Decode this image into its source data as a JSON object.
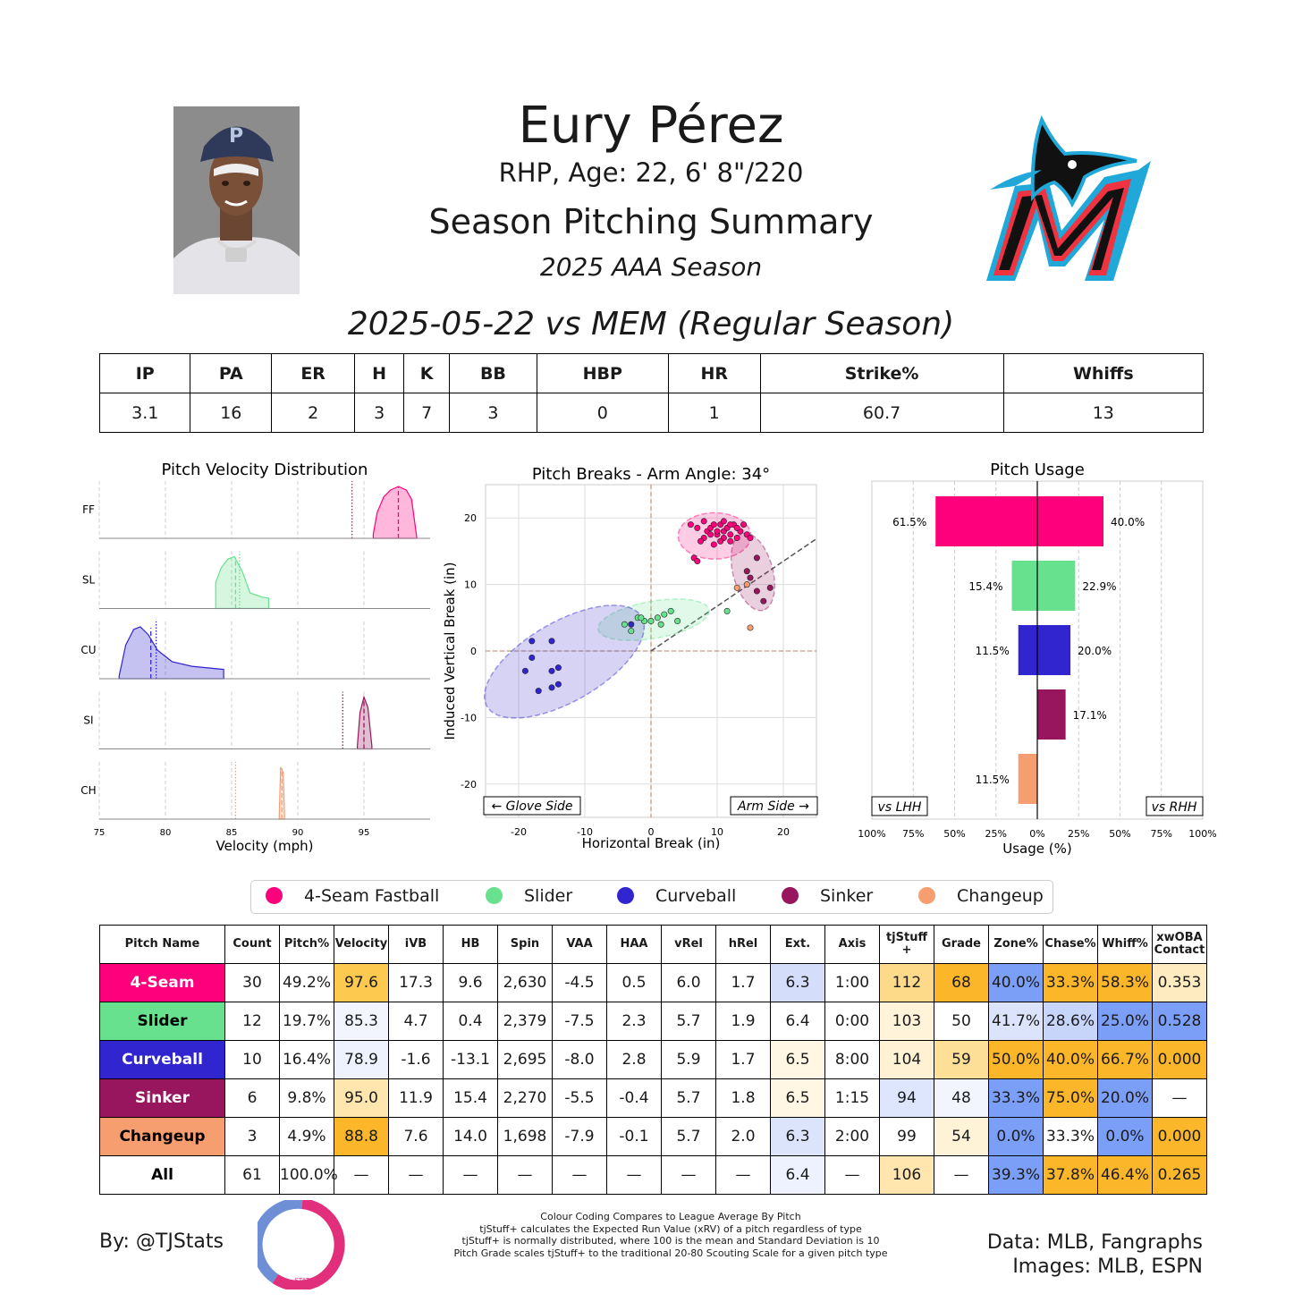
{
  "header": {
    "name": "Eury Pérez",
    "info": "RHP, Age: 22, 6' 8\"/220",
    "title": "Season Pitching Summary",
    "season": "2025 AAA Season",
    "game": "2025-05-22 vs MEM (Regular Season)"
  },
  "game_stats": {
    "headers": [
      "IP",
      "PA",
      "ER",
      "H",
      "K",
      "BB",
      "HBP",
      "HR",
      "Strike%",
      "Whiffs"
    ],
    "values": [
      "3.1",
      "16",
      "2",
      "3",
      "7",
      "3",
      "0",
      "1",
      "60.7",
      "13"
    ]
  },
  "colors": {
    "4-Seam Fastball": "#ff007d",
    "Slider": "#67e18d",
    "Curveball": "#3025ce",
    "Sinker": "#98165d",
    "Changeup": "#f79e70"
  },
  "legend": [
    "4-Seam Fastball",
    "Slider",
    "Curveball",
    "Sinker",
    "Changeup"
  ],
  "chart_data": [
    {
      "type": "area",
      "title": "Pitch Velocity Distribution",
      "xlabel": "Velocity (mph)",
      "xlim": [
        75,
        100
      ],
      "xticks": [
        75,
        80,
        85,
        90,
        95
      ],
      "rows": [
        {
          "label": "FF",
          "pitch": "4-Seam Fastball",
          "range": [
            95.7,
            99.0
          ],
          "mode": 97.6,
          "mean": 97.6,
          "league_avg": 94.1,
          "curve": [
            [
              95.7,
              0.08
            ],
            [
              96.0,
              0.5
            ],
            [
              96.5,
              0.8
            ],
            [
              97.0,
              0.93
            ],
            [
              97.6,
              1.0
            ],
            [
              98.2,
              0.93
            ],
            [
              98.6,
              0.75
            ],
            [
              99.0,
              0.0
            ]
          ]
        },
        {
          "label": "SL",
          "pitch": "Slider",
          "range": [
            83.8,
            87.8
          ],
          "mode": 85.2,
          "mean": 85.3,
          "league_avg": 85.6,
          "curve": [
            [
              83.8,
              0.5
            ],
            [
              84.2,
              0.78
            ],
            [
              84.7,
              0.95
            ],
            [
              85.2,
              1.0
            ],
            [
              85.8,
              0.72
            ],
            [
              86.4,
              0.3
            ],
            [
              87.3,
              0.22
            ],
            [
              87.8,
              0.2
            ]
          ]
        },
        {
          "label": "CU",
          "pitch": "Curveball",
          "range": [
            76.5,
            84.4
          ],
          "mode": 78.0,
          "mean": 78.9,
          "league_avg": 79.3,
          "curve": [
            [
              76.5,
              0.05
            ],
            [
              77.0,
              0.65
            ],
            [
              77.6,
              0.95
            ],
            [
              78.1,
              1.0
            ],
            [
              78.7,
              0.85
            ],
            [
              79.4,
              0.55
            ],
            [
              80.5,
              0.33
            ],
            [
              82.0,
              0.24
            ],
            [
              84.4,
              0.18
            ]
          ]
        },
        {
          "label": "SI",
          "pitch": "Sinker",
          "range": [
            94.5,
            95.6
          ],
          "mode": 95.0,
          "mean": 95.0,
          "league_avg": 93.4,
          "curve": [
            [
              94.5,
              0.05
            ],
            [
              94.7,
              0.7
            ],
            [
              95.0,
              1.0
            ],
            [
              95.3,
              0.8
            ],
            [
              95.6,
              0.05
            ]
          ]
        },
        {
          "label": "CH",
          "pitch": "Changeup",
          "range": [
            88.6,
            89.0
          ],
          "mode": 88.8,
          "mean": 88.8,
          "league_avg": 85.3,
          "curve": [
            [
              88.6,
              0.1
            ],
            [
              88.7,
              1.0
            ],
            [
              88.8,
              0.95
            ],
            [
              88.9,
              0.9
            ],
            [
              89.0,
              0.05
            ]
          ]
        }
      ]
    },
    {
      "type": "scatter",
      "title": "Pitch Breaks - Arm Angle: 34°",
      "xlabel": "Horizontal Break (in)",
      "ylabel": "Induced Vertical Break (in)",
      "xlim": [
        -25,
        25
      ],
      "ylim": [
        -25,
        25
      ],
      "ticks": [
        -20,
        -10,
        0,
        10,
        20
      ],
      "glove_label": "← Glove Side",
      "arm_label": "Arm Side →",
      "arm_angle_deg": 34,
      "series": [
        {
          "name": "4-Seam Fastball",
          "ellipse": {
            "cx": 9.6,
            "cy": 17.3,
            "rx": 5.5,
            "ry": 3.5,
            "angle": 0
          },
          "points": [
            [
              6,
              19
            ],
            [
              7,
              18.5
            ],
            [
              8,
              17
            ],
            [
              8.5,
              18
            ],
            [
              9,
              18.5
            ],
            [
              9,
              17.5
            ],
            [
              9.5,
              19
            ],
            [
              10,
              17.5
            ],
            [
              10,
              18
            ],
            [
              10.5,
              19
            ],
            [
              11,
              17
            ],
            [
              11,
              18
            ],
            [
              11.5,
              18.5
            ],
            [
              12,
              16.5
            ],
            [
              12,
              17.5
            ],
            [
              12.5,
              19
            ],
            [
              13,
              17
            ],
            [
              13.5,
              18
            ],
            [
              14,
              19
            ],
            [
              14.5,
              17.5
            ],
            [
              7.5,
              16.5
            ],
            [
              9.5,
              16
            ],
            [
              10.5,
              16.5
            ],
            [
              13,
              18.5
            ],
            [
              8,
              19.5
            ],
            [
              11,
              19.5
            ],
            [
              12,
              19
            ],
            [
              6.5,
              14
            ],
            [
              7,
              13.5
            ],
            [
              15,
              17
            ]
          ]
        },
        {
          "name": "Slider",
          "ellipse": {
            "cx": 0.4,
            "cy": 4.7,
            "rx": 8.5,
            "ry": 2.8,
            "angle": -10
          },
          "points": [
            [
              -4,
              4
            ],
            [
              -3,
              3
            ],
            [
              -2,
              5
            ],
            [
              -1,
              4.5
            ],
            [
              0,
              4.5
            ],
            [
              1,
              5
            ],
            [
              1.5,
              4
            ],
            [
              2,
              5.5
            ],
            [
              3,
              6
            ],
            [
              4,
              4.5
            ],
            [
              -1.5,
              5
            ],
            [
              11.5,
              6
            ]
          ]
        },
        {
          "name": "Curveball",
          "ellipse": {
            "cx": -13.1,
            "cy": -1.6,
            "rx": 13.5,
            "ry": 6,
            "angle": -30
          },
          "points": [
            [
              -18,
              -1
            ],
            [
              -19,
              -3
            ],
            [
              -15,
              -3
            ],
            [
              -14,
              -2.5
            ],
            [
              -17,
              -6
            ],
            [
              -15,
              -5.5
            ],
            [
              -14,
              -5
            ],
            [
              -15,
              1.5
            ],
            [
              -18,
              1.5
            ],
            [
              -3,
              4
            ]
          ]
        },
        {
          "name": "Sinker",
          "ellipse": {
            "cx": 15.4,
            "cy": 11.9,
            "rx": 6,
            "ry": 3,
            "angle": 75
          },
          "points": [
            [
              15,
              11
            ],
            [
              16,
              9
            ],
            [
              17,
              7.5
            ],
            [
              18,
              9.5
            ],
            [
              14.5,
              12
            ],
            [
              16,
              14
            ]
          ]
        },
        {
          "name": "Changeup",
          "ellipse": null,
          "points": [
            [
              13,
              9.5
            ],
            [
              14.5,
              10
            ],
            [
              15,
              3.5
            ]
          ]
        }
      ]
    },
    {
      "type": "bar",
      "title": "Pitch Usage",
      "xlabel": "Usage (%)",
      "xticks": [
        "100%",
        "75%",
        "50%",
        "25%",
        "0%",
        "25%",
        "50%",
        "75%",
        "100%"
      ],
      "lhh_label": "vs LHH",
      "rhh_label": "vs RHH",
      "series": [
        {
          "name": "4-Seam Fastball",
          "vs_lhh": 61.5,
          "vs_rhh": 40.0
        },
        {
          "name": "Slider",
          "vs_lhh": 15.4,
          "vs_rhh": 22.9
        },
        {
          "name": "Curveball",
          "vs_lhh": 11.5,
          "vs_rhh": 20.0
        },
        {
          "name": "Sinker",
          "vs_lhh": 0,
          "vs_rhh": 17.1
        },
        {
          "name": "Changeup",
          "vs_lhh": 11.5,
          "vs_rhh": 0
        }
      ]
    },
    {
      "type": "table",
      "headers": [
        "Pitch Name",
        "Count",
        "Pitch%",
        "Velocity",
        "iVB",
        "HB",
        "Spin",
        "VAA",
        "HAA",
        "vRel",
        "hRel",
        "Ext.",
        "Axis",
        "tjStuff +",
        "Grade",
        "Zone%",
        "Chase%",
        "Whiff%",
        "xwOBA Contact"
      ],
      "rows": [
        {
          "name": "4-Seam",
          "name_bg": "#ff007d",
          "name_color": "#ffffff",
          "cells": [
            "30",
            "49.2%",
            "97.6",
            "17.3",
            "9.6",
            "2,630",
            "-4.5",
            "0.5",
            "6.0",
            "1.7",
            "6.3",
            "1:00",
            "112",
            "68",
            "40.0%",
            "33.3%",
            "58.3%",
            "0.353"
          ],
          "bg": [
            "",
            "",
            "#fdc94e",
            "",
            "",
            "",
            "",
            "",
            "",
            "",
            "#d4ddfa",
            "",
            "#fdd98a",
            "#fbb62a",
            "#7b9ef7",
            "#fbb62a",
            "#fbb62a",
            "#feecc0"
          ]
        },
        {
          "name": "Slider",
          "name_bg": "#67e18d",
          "name_color": "#000000",
          "cells": [
            "12",
            "19.7%",
            "85.3",
            "4.7",
            "0.4",
            "2,379",
            "-7.5",
            "2.3",
            "5.7",
            "1.9",
            "6.4",
            "0:00",
            "103",
            "50",
            "41.7%",
            "28.6%",
            "25.0%",
            "0.528"
          ],
          "bg": [
            "",
            "",
            "#f2f5fe",
            "",
            "",
            "",
            "",
            "",
            "",
            "",
            "",
            "",
            "#fff3d9",
            "",
            "#dce4fb",
            "#c8d5fa",
            "#7b9ef7",
            "#7b9ef7"
          ]
        },
        {
          "name": "Curveball",
          "name_bg": "#3025ce",
          "name_color": "#ffffff",
          "cells": [
            "10",
            "16.4%",
            "78.9",
            "-1.6",
            "-13.1",
            "2,695",
            "-8.0",
            "2.8",
            "5.9",
            "1.7",
            "6.5",
            "8:00",
            "104",
            "59",
            "50.0%",
            "40.0%",
            "66.7%",
            "0.000"
          ],
          "bg": [
            "",
            "",
            "#eef2fe",
            "",
            "",
            "",
            "",
            "",
            "",
            "",
            "#fff6e3",
            "",
            "#fff1d3",
            "#fddf98",
            "#fbb62a",
            "#fbb62a",
            "#fbb62a",
            "#fbb62a"
          ]
        },
        {
          "name": "Sinker",
          "name_bg": "#98165d",
          "name_color": "#ffffff",
          "cells": [
            "6",
            "9.8%",
            "95.0",
            "11.9",
            "15.4",
            "2,270",
            "-5.5",
            "-0.4",
            "5.7",
            "1.8",
            "6.5",
            "1:15",
            "94",
            "48",
            "33.3%",
            "75.0%",
            "20.0%",
            "—"
          ],
          "bg": [
            "",
            "",
            "#fee6ae",
            "",
            "",
            "",
            "",
            "",
            "",
            "",
            "#fff6e3",
            "",
            "#dde6fc",
            "#f2f5fe",
            "#7b9ef7",
            "#fbb62a",
            "#7b9ef7",
            ""
          ]
        },
        {
          "name": "Changeup",
          "name_bg": "#f79e70",
          "name_color": "#000000",
          "cells": [
            "3",
            "4.9%",
            "88.8",
            "7.6",
            "14.0",
            "1,698",
            "-7.9",
            "-0.1",
            "5.7",
            "2.0",
            "6.3",
            "2:00",
            "99",
            "54",
            "0.0%",
            "33.3%",
            "0.0%",
            "0.000"
          ],
          "bg": [
            "",
            "",
            "#fbb62a",
            "",
            "",
            "",
            "",
            "",
            "",
            "",
            "#dce4fb",
            "",
            "",
            "#fef2d7",
            "#7b9ef7",
            "",
            "#7b9ef7",
            "#fbb62a"
          ]
        },
        {
          "name": "All",
          "name_bg": "#ffffff",
          "name_color": "#000000",
          "cells": [
            "61",
            "100.0%",
            "—",
            "—",
            "—",
            "—",
            "—",
            "—",
            "—",
            "—",
            "6.4",
            "—",
            "106",
            "—",
            "39.3%",
            "37.8%",
            "46.4%",
            "0.265"
          ],
          "bg": [
            "",
            "",
            "",
            "",
            "",
            "",
            "",
            "",
            "",
            "",
            "#eef2fe",
            "",
            "#fee6ae",
            "",
            "#7b9ef7",
            "#fbb62a",
            "#fbb62a",
            "#fbb62a"
          ]
        }
      ]
    }
  ],
  "footer": {
    "by": "By: @TJStats",
    "notes": [
      "Colour Coding Compares to League Average By Pitch",
      "tjStuff+ calculates the Expected Run Value (xRV) of a pitch regardless of type",
      "tjStuff+ is normally distributed, where 100 is the mean and Standard Deviation is 10",
      "Pitch Grade scales tjStuff+ to the traditional 20-80 Scouting Scale for a given pitch type"
    ],
    "data_credit": "Data: MLB, Fangraphs",
    "images_credit": "Images: MLB, ESPN",
    "logo_text": "STATS"
  }
}
